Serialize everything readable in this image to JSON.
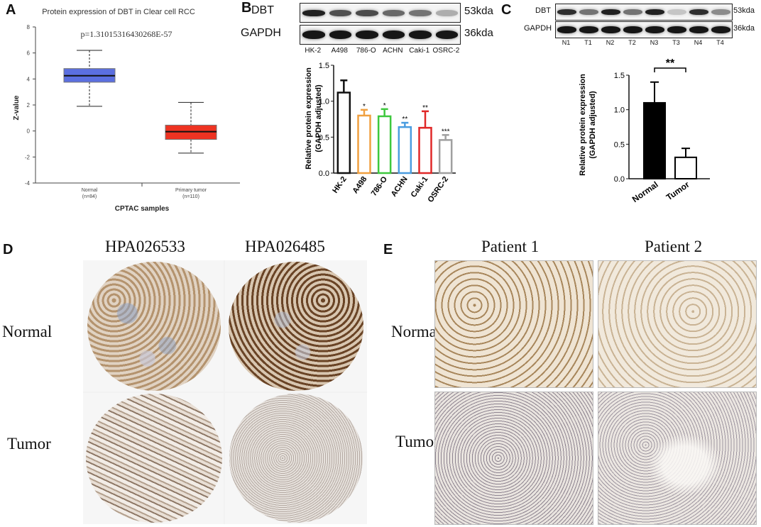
{
  "panels": {
    "A": "A",
    "B": "B",
    "C": "C",
    "D": "D",
    "E": "E"
  },
  "panelA": {
    "title": "Protein expression of DBT in Clear cell RCC",
    "pvalue": "p=1.31015316430268E-57",
    "ylabel": "Z-value",
    "xlabel": "CPTAC samples",
    "yticks": [
      "8",
      "6",
      "4",
      "2",
      "0",
      "-2",
      "-4"
    ],
    "groups": [
      {
        "name": "Normal",
        "n": "(n=84)"
      },
      {
        "name": "Primary tumor",
        "n": "(n=110)"
      }
    ],
    "colors": {
      "normal": "#5b6fe0",
      "tumor": "#ee3322"
    }
  },
  "panelB": {
    "blot_labels": [
      "DBT",
      "GAPDH"
    ],
    "blot_sizes": [
      "53kda",
      "36kda"
    ],
    "lanes": [
      "HK-2",
      "A498",
      "786-O",
      "ACHN",
      "Caki-1",
      "OSRC-2"
    ],
    "ylabel1": "Relative protein expression",
    "ylabel2": "(GAPDH adjusted)",
    "yticks": [
      "0.0",
      "0.5",
      "1.0",
      "1.5"
    ],
    "signif": [
      "",
      "*",
      "*",
      "**",
      "**",
      "***"
    ],
    "colors": [
      "#111111",
      "#f0a040",
      "#3ec83e",
      "#4a9de0",
      "#e02828",
      "#a0a0a0"
    ]
  },
  "panelC": {
    "blot_labels": [
      "DBT",
      "GAPDH"
    ],
    "blot_sizes": [
      "53kda",
      "36kda"
    ],
    "lanes": [
      "N1",
      "T1",
      "N2",
      "T2",
      "N3",
      "T3",
      "N4",
      "T4"
    ],
    "ylabel1": "Relative protein expression",
    "ylabel2": "(GAPDH adjusted)",
    "yticks": [
      "0.0",
      "0.5",
      "1.0",
      "1.5"
    ],
    "signif": "**",
    "categories": [
      "Normal",
      "Tumor"
    ]
  },
  "panelD": {
    "columns": [
      "HPA026533",
      "HPA026485"
    ],
    "rows": [
      "Normal",
      "Tumor"
    ]
  },
  "panelE": {
    "columns": [
      "Patient 1",
      "Patient 2"
    ],
    "rows": [
      "Normal",
      "Tumor"
    ]
  },
  "chart_data": [
    {
      "type": "box",
      "title": "Protein expression of DBT in Clear cell RCC",
      "xlabel": "CPTAC samples",
      "ylabel": "Z-value",
      "ylim": [
        -4,
        8
      ],
      "categories": [
        "Normal",
        "Primary tumor"
      ],
      "boxes": [
        {
          "min": 1.9,
          "q1": 3.75,
          "median": 4.25,
          "q3": 4.8,
          "max": 6.2
        },
        {
          "min": -1.7,
          "q1": -0.65,
          "median": -0.05,
          "q3": 0.45,
          "max": 2.2
        }
      ]
    },
    {
      "type": "bar",
      "categories": [
        "HK-2",
        "A498",
        "786-O",
        "ACHN",
        "Caki-1",
        "OSRC-2"
      ],
      "values": [
        1.12,
        0.8,
        0.79,
        0.64,
        0.63,
        0.46
      ],
      "errors": [
        0.17,
        0.08,
        0.1,
        0.06,
        0.23,
        0.07
      ],
      "ylabel": "Relative protein expression (GAPDH adjusted)",
      "ylim": [
        0,
        1.5
      ]
    },
    {
      "type": "bar",
      "categories": [
        "Normal",
        "Tumor"
      ],
      "values": [
        1.1,
        0.31
      ],
      "errors": [
        0.3,
        0.13
      ],
      "ylabel": "Relative protein expression (GAPDH adjusted)",
      "ylim": [
        0,
        1.5
      ]
    }
  ]
}
